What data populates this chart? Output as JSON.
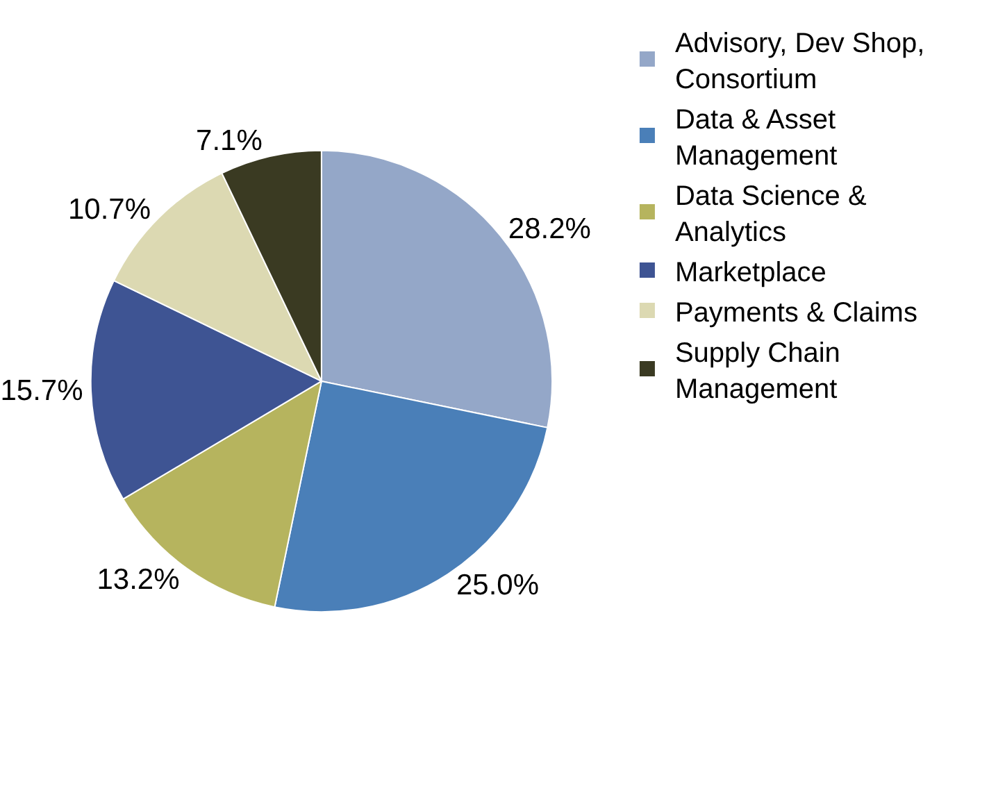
{
  "chart_data": {
    "type": "pie",
    "categories": [
      "Advisory, Dev Shop, Consortium",
      "Data & Asset Management",
      "Data Science & Analytics",
      "Marketplace",
      "Payments & Claims",
      "Supply Chain Management"
    ],
    "values": [
      28.2,
      25.0,
      13.2,
      15.7,
      10.7,
      7.1
    ],
    "colors": [
      "#94a7c8",
      "#4a7fb8",
      "#b6b45e",
      "#3e5493",
      "#dcd9b2",
      "#3a3a22"
    ],
    "value_labels": [
      "28.2%",
      "25.0%",
      "13.2%",
      "15.7%",
      "10.7%",
      "7.1%"
    ],
    "legend": "right"
  }
}
